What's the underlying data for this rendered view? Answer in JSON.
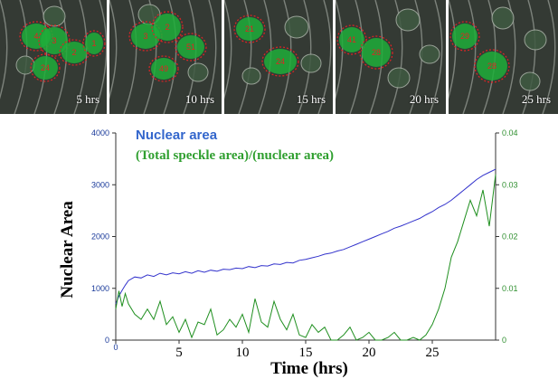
{
  "panels": [
    {
      "label": "5 hrs",
      "cells": [
        "4",
        "3",
        "2",
        "1",
        "24"
      ]
    },
    {
      "label": "10 hrs",
      "cells": [
        "3",
        "2",
        "51",
        "49"
      ]
    },
    {
      "label": "15 hrs",
      "cells": [
        "21",
        "24"
      ]
    },
    {
      "label": "20 hrs",
      "cells": [
        "41",
        "28"
      ]
    },
    {
      "label": "25 hrs",
      "cells": [
        "29",
        "28"
      ]
    }
  ],
  "colors": {
    "nuclear": "#3333cc",
    "speckle": "#1f8f1f",
    "left_axis": "#1a3a9a",
    "right_axis": "#2f8f2f",
    "cell_outline": "#e02424",
    "nucleus_fill": "#1fae3a"
  },
  "chart_data": {
    "type": "line",
    "xlabel": "Time (hrs)",
    "ylabel": "Nuclear Area",
    "xlim": [
      0,
      30
    ],
    "ylim": [
      0,
      4000
    ],
    "y2lim": [
      0,
      0.04
    ],
    "xticks": [
      "0",
      "5",
      "10",
      "15",
      "20",
      "25"
    ],
    "yticks": [
      "0",
      "1000",
      "2000",
      "3000",
      "4000"
    ],
    "y2ticks": [
      "0",
      "0.01",
      "0.02",
      "0.03",
      "0.04"
    ],
    "legend_position": "top-left",
    "grid": false,
    "series": [
      {
        "name": "Nuclear area",
        "axis": "left",
        "x": [
          0,
          0.25,
          0.5,
          0.75,
          1,
          1.5,
          2,
          2.5,
          3,
          3.5,
          4,
          4.5,
          5,
          5.5,
          6,
          6.5,
          7,
          7.5,
          8,
          8.5,
          9,
          9.5,
          10,
          10.5,
          11,
          11.5,
          12,
          12.5,
          13,
          13.5,
          14,
          14.5,
          15,
          15.5,
          16,
          16.5,
          17,
          17.5,
          18,
          18.5,
          19,
          19.5,
          20,
          20.5,
          21,
          21.5,
          22,
          22.5,
          23,
          23.5,
          24,
          24.5,
          25,
          25.5,
          26,
          26.5,
          27,
          27.5,
          28,
          28.5,
          29,
          29.5,
          30
        ],
        "y": [
          700,
          850,
          960,
          1060,
          1150,
          1220,
          1200,
          1260,
          1230,
          1290,
          1260,
          1300,
          1280,
          1320,
          1290,
          1340,
          1310,
          1350,
          1330,
          1370,
          1360,
          1390,
          1380,
          1420,
          1400,
          1440,
          1430,
          1470,
          1460,
          1500,
          1490,
          1540,
          1560,
          1590,
          1620,
          1660,
          1680,
          1720,
          1750,
          1800,
          1850,
          1900,
          1950,
          2000,
          2050,
          2100,
          2160,
          2200,
          2250,
          2300,
          2350,
          2420,
          2480,
          2560,
          2620,
          2700,
          2800,
          2900,
          3000,
          3100,
          3180,
          3240,
          3300
        ]
      },
      {
        "name": "(Total speckle area)/(nuclear area)",
        "axis": "right",
        "x": [
          0,
          0.25,
          0.5,
          0.75,
          1,
          1.5,
          2,
          2.5,
          3,
          3.5,
          4,
          4.5,
          5,
          5.5,
          6,
          6.5,
          7,
          7.5,
          8,
          8.5,
          9,
          9.5,
          10,
          10.5,
          11,
          11.5,
          12,
          12.5,
          13,
          13.5,
          14,
          14.5,
          15,
          15.5,
          16,
          16.5,
          17,
          17.5,
          18,
          18.5,
          19,
          19.5,
          20,
          20.5,
          21,
          21.5,
          22,
          22.5,
          23,
          23.5,
          24,
          24.5,
          25,
          25.5,
          26,
          26.5,
          27,
          27.5,
          28,
          28.5,
          29,
          29.5,
          30
        ],
        "y": [
          0.006,
          0.0095,
          0.0065,
          0.009,
          0.007,
          0.005,
          0.004,
          0.006,
          0.004,
          0.0075,
          0.003,
          0.0045,
          0.0015,
          0.004,
          0.0005,
          0.0035,
          0.003,
          0.006,
          0.001,
          0.002,
          0.004,
          0.0025,
          0.005,
          0.0015,
          0.008,
          0.0035,
          0.0025,
          0.0075,
          0.004,
          0.002,
          0.005,
          0.001,
          0.0005,
          0.003,
          0.0015,
          0.0025,
          0.0,
          0.0,
          0.001,
          0.0025,
          0.0,
          0.0005,
          0.0015,
          0.0,
          0.0,
          0.0005,
          0.0015,
          0.0,
          0.0,
          0.0005,
          0.0,
          0.001,
          0.003,
          0.006,
          0.01,
          0.016,
          0.019,
          0.023,
          0.027,
          0.024,
          0.029,
          0.022,
          0.032
        ]
      }
    ]
  }
}
